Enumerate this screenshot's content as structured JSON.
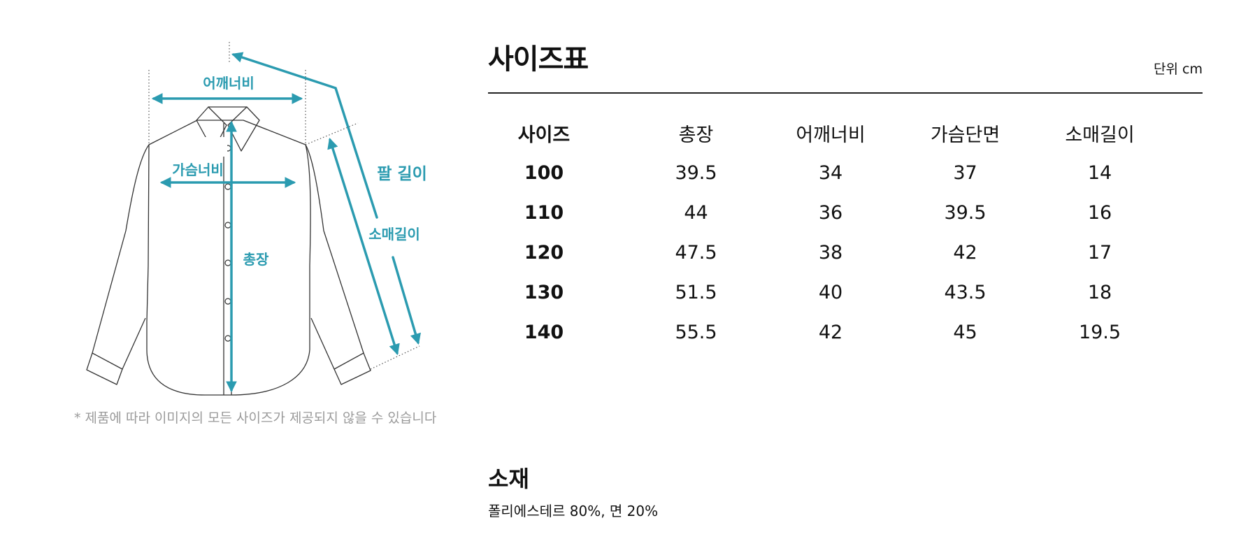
{
  "diagram": {
    "labels": {
      "shoulder": "어깨너비",
      "chest": "가슴너비",
      "length": "총장",
      "arm": "팔 길이",
      "sleeve": "소매길이"
    },
    "note": "* 제품에 따라 이미지의 모든 사이즈가 제공되지 않을 수 있습니다",
    "accent_color": "#2b9bb0"
  },
  "size_chart": {
    "title": "사이즈표",
    "unit": "단위 cm",
    "headers": [
      "사이즈",
      "총장",
      "어깨너비",
      "가슴단면",
      "소매길이"
    ],
    "rows": [
      [
        "100",
        "39.5",
        "34",
        "37",
        "14"
      ],
      [
        "110",
        "44",
        "36",
        "39.5",
        "16"
      ],
      [
        "120",
        "47.5",
        "38",
        "42",
        "17"
      ],
      [
        "130",
        "51.5",
        "40",
        "43.5",
        "18"
      ],
      [
        "140",
        "55.5",
        "42",
        "45",
        "19.5"
      ]
    ]
  },
  "material": {
    "title": "소재",
    "text": "폴리에스테르 80%, 면 20%"
  }
}
